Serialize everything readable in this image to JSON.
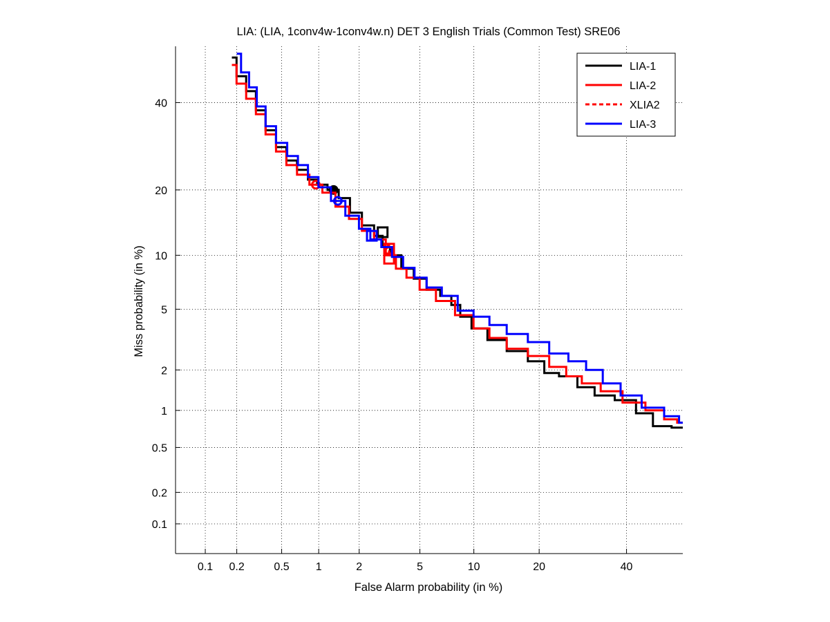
{
  "chart_data": {
    "type": "line",
    "title": "LIA: (LIA, 1conv4w-1conv4w.n) DET 3 English Trials (Common Test) SRE06",
    "xlabel": "False Alarm probability (in %)",
    "ylabel": "Miss probability (in %)",
    "scale": "normal-deviate (probit)",
    "xlim": [
      0.05,
      55
    ],
    "ylim": [
      0.05,
      55
    ],
    "x_ticks": [
      {
        "value": 0.1,
        "label": "0.1"
      },
      {
        "value": 0.2,
        "label": "0.2"
      },
      {
        "value": 0.5,
        "label": "0.5"
      },
      {
        "value": 1,
        "label": "1"
      },
      {
        "value": 2,
        "label": "2"
      },
      {
        "value": 5,
        "label": "5"
      },
      {
        "value": 10,
        "label": "10"
      },
      {
        "value": 20,
        "label": "20"
      },
      {
        "value": 40,
        "label": "40"
      }
    ],
    "y_ticks": [
      {
        "value": 0.1,
        "label": "0.1"
      },
      {
        "value": 0.2,
        "label": "0.2"
      },
      {
        "value": 0.5,
        "label": "0.5"
      },
      {
        "value": 1,
        "label": "1"
      },
      {
        "value": 2,
        "label": "2"
      },
      {
        "value": 5,
        "label": "5"
      },
      {
        "value": 10,
        "label": "10"
      },
      {
        "value": 20,
        "label": "20"
      },
      {
        "value": 40,
        "label": "40"
      }
    ],
    "grid": true,
    "legend_position": "top-right",
    "series": [
      {
        "name": "LIA-1",
        "color": "#000000",
        "dash": "solid",
        "points": [
          [
            0.18,
            52
          ],
          [
            0.22,
            47
          ],
          [
            0.27,
            43
          ],
          [
            0.33,
            38
          ],
          [
            0.4,
            33
          ],
          [
            0.5,
            29
          ],
          [
            0.6,
            26
          ],
          [
            0.75,
            24
          ],
          [
            0.9,
            22
          ],
          [
            1.05,
            21
          ],
          [
            1.3,
            20
          ],
          [
            1.55,
            18.5
          ],
          [
            1.9,
            16
          ],
          [
            2.3,
            14
          ],
          [
            2.8,
            12.5
          ],
          [
            3.0,
            11
          ],
          [
            3.5,
            10
          ],
          [
            4.2,
            8.5
          ],
          [
            5,
            7.5
          ],
          [
            6,
            6.5
          ],
          [
            7.2,
            6
          ],
          [
            8,
            5.3
          ],
          [
            9,
            4.5
          ],
          [
            10.5,
            3.8
          ],
          [
            13,
            3.2
          ],
          [
            16,
            2.7
          ],
          [
            20,
            2.3
          ],
          [
            22,
            1.9
          ],
          [
            26,
            1.8
          ],
          [
            30,
            1.5
          ],
          [
            34,
            1.3
          ],
          [
            40,
            1.2
          ],
          [
            45,
            0.95
          ],
          [
            49,
            0.75
          ],
          [
            55,
            0.73
          ]
        ],
        "min_dcf": {
          "x": 1.3,
          "y": 20,
          "marker": "filled-circle"
        },
        "act_dcf": {
          "x": 2.9,
          "y": 13,
          "marker": "square"
        }
      },
      {
        "name": "LIA-2",
        "color": "#ff0000",
        "dash": "solid",
        "points": [
          [
            0.18,
            50
          ],
          [
            0.22,
            45
          ],
          [
            0.27,
            41
          ],
          [
            0.33,
            37
          ],
          [
            0.4,
            32
          ],
          [
            0.5,
            28
          ],
          [
            0.6,
            25
          ],
          [
            0.75,
            23
          ],
          [
            0.95,
            21
          ],
          [
            1.2,
            19.5
          ],
          [
            1.5,
            17
          ],
          [
            1.9,
            15
          ],
          [
            2.3,
            13.2
          ],
          [
            2.8,
            12
          ],
          [
            3.3,
            10
          ],
          [
            3.8,
            8.5
          ],
          [
            4.5,
            7.6
          ],
          [
            5.5,
            6.5
          ],
          [
            7,
            5.6
          ],
          [
            9,
            4.6
          ],
          [
            11,
            3.8
          ],
          [
            13,
            3.3
          ],
          [
            16,
            2.8
          ],
          [
            20,
            2.5
          ],
          [
            24,
            2.1
          ],
          [
            27,
            1.8
          ],
          [
            31,
            1.6
          ],
          [
            36,
            1.4
          ],
          [
            42,
            1.15
          ],
          [
            48,
            1.0
          ],
          [
            52,
            0.85
          ],
          [
            55,
            0.8
          ]
        ],
        "min_dcf": {
          "x": 0.95,
          "y": 21,
          "marker": "circle"
        },
        "act_dcf": {
          "x": 3.2,
          "y": 9.6,
          "marker": "square"
        }
      },
      {
        "name": "XLIA2",
        "color": "#ff0000",
        "dash": "dashed",
        "points": [
          [
            3.1,
            11.2
          ],
          [
            3.3,
            10.2
          ]
        ],
        "min_dcf": {
          "x": 3.2,
          "y": 10.5,
          "marker": "circle"
        },
        "act_dcf": {
          "x": 3.2,
          "y": 10.8,
          "marker": "square"
        }
      },
      {
        "name": "LIA-3",
        "color": "#0000ff",
        "dash": "solid",
        "points": [
          [
            0.2,
            53
          ],
          [
            0.24,
            48
          ],
          [
            0.28,
            44
          ],
          [
            0.33,
            39
          ],
          [
            0.4,
            34
          ],
          [
            0.5,
            30
          ],
          [
            0.62,
            27
          ],
          [
            0.75,
            25
          ],
          [
            0.9,
            22.5
          ],
          [
            1.1,
            20.5
          ],
          [
            1.4,
            18
          ],
          [
            1.8,
            15.5
          ],
          [
            2.2,
            13.5
          ],
          [
            2.6,
            12
          ],
          [
            3.1,
            11
          ],
          [
            3.6,
            9.8
          ],
          [
            4.3,
            8.6
          ],
          [
            5,
            7.6
          ],
          [
            6,
            6.7
          ],
          [
            7.5,
            6
          ],
          [
            9,
            4.9
          ],
          [
            11,
            4.5
          ],
          [
            13,
            4
          ],
          [
            16,
            3.5
          ],
          [
            20,
            3.1
          ],
          [
            24,
            2.6
          ],
          [
            28,
            2.3
          ],
          [
            32,
            2.0
          ],
          [
            36,
            1.6
          ],
          [
            41,
            1.3
          ],
          [
            47,
            1.05
          ],
          [
            53,
            0.9
          ],
          [
            55,
            0.8
          ]
        ],
        "min_dcf": {
          "x": 1.4,
          "y": 18,
          "marker": "circle"
        },
        "act_dcf": {
          "x": 2.45,
          "y": 12.5,
          "marker": "square"
        }
      }
    ]
  }
}
